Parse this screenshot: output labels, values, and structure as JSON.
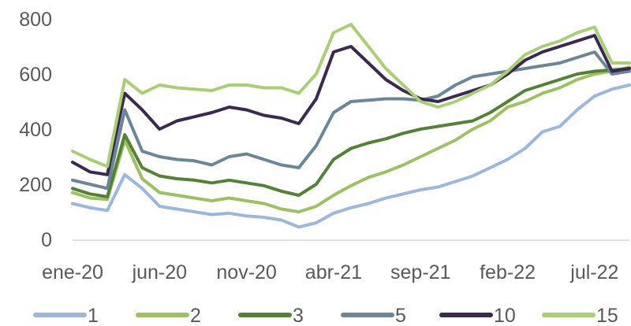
{
  "chart_data": {
    "type": "line",
    "title": "",
    "xlabel": "",
    "ylabel": "",
    "ylim": [
      0,
      800
    ],
    "y_ticks": [
      "0",
      "200",
      "400",
      "600",
      "800"
    ],
    "x_ticks": [
      "ene-20",
      "jun-20",
      "nov-20",
      "abr-21",
      "sep-21",
      "feb-22",
      "jul-22"
    ],
    "x_months": [
      "ene-20",
      "feb-20",
      "mar-20",
      "abr-20",
      "may-20",
      "jun-20",
      "jul-20",
      "ago-20",
      "sep-20",
      "oct-20",
      "nov-20",
      "dic-20",
      "ene-21",
      "feb-21",
      "mar-21",
      "abr-21",
      "may-21",
      "jun-21",
      "jul-21",
      "ago-21",
      "sep-21",
      "oct-21",
      "nov-21",
      "dic-21",
      "ene-22",
      "feb-22",
      "mar-22",
      "abr-22",
      "may-22",
      "jun-22",
      "jul-22",
      "ago-22",
      "sep-22"
    ],
    "grid": false,
    "legend": "bottom",
    "series": [
      {
        "name": "1",
        "color": "#9bb7dd",
        "values": [
          130,
          115,
          105,
          235,
          185,
          120,
          110,
          100,
          90,
          95,
          85,
          80,
          70,
          45,
          60,
          95,
          115,
          130,
          150,
          165,
          180,
          190,
          210,
          230,
          260,
          290,
          330,
          390,
          410,
          470,
          520,
          545,
          560
        ]
      },
      {
        "name": "2",
        "color": "#9dc061",
        "values": [
          170,
          150,
          145,
          360,
          220,
          170,
          160,
          150,
          140,
          150,
          140,
          130,
          110,
          100,
          120,
          160,
          195,
          225,
          245,
          270,
          300,
          330,
          360,
          400,
          430,
          480,
          500,
          530,
          550,
          580,
          600,
          610,
          625
        ]
      },
      {
        "name": "3",
        "color": "#548235",
        "values": [
          185,
          165,
          155,
          380,
          260,
          230,
          220,
          215,
          205,
          215,
          205,
          195,
          175,
          160,
          200,
          290,
          330,
          350,
          365,
          385,
          400,
          410,
          420,
          430,
          460,
          500,
          540,
          560,
          580,
          600,
          610,
          615,
          620
        ]
      },
      {
        "name": "5",
        "color": "#6b8696",
        "values": [
          215,
          200,
          185,
          470,
          320,
          300,
          290,
          285,
          270,
          300,
          310,
          290,
          270,
          260,
          340,
          460,
          500,
          505,
          510,
          510,
          505,
          520,
          560,
          590,
          600,
          610,
          620,
          630,
          640,
          660,
          680,
          600,
          610
        ]
      },
      {
        "name": "10",
        "color": "#3b2a50",
        "values": [
          280,
          245,
          235,
          530,
          470,
          400,
          430,
          445,
          460,
          480,
          470,
          450,
          440,
          420,
          510,
          680,
          700,
          640,
          580,
          540,
          510,
          500,
          520,
          540,
          560,
          600,
          650,
          680,
          700,
          720,
          740,
          610,
          620
        ]
      },
      {
        "name": "15",
        "color": "#a9cf73",
        "values": [
          320,
          290,
          265,
          580,
          530,
          560,
          550,
          545,
          540,
          560,
          560,
          550,
          550,
          530,
          600,
          750,
          780,
          700,
          620,
          560,
          500,
          480,
          500,
          530,
          560,
          610,
          670,
          700,
          720,
          750,
          770,
          640,
          640
        ]
      }
    ]
  }
}
